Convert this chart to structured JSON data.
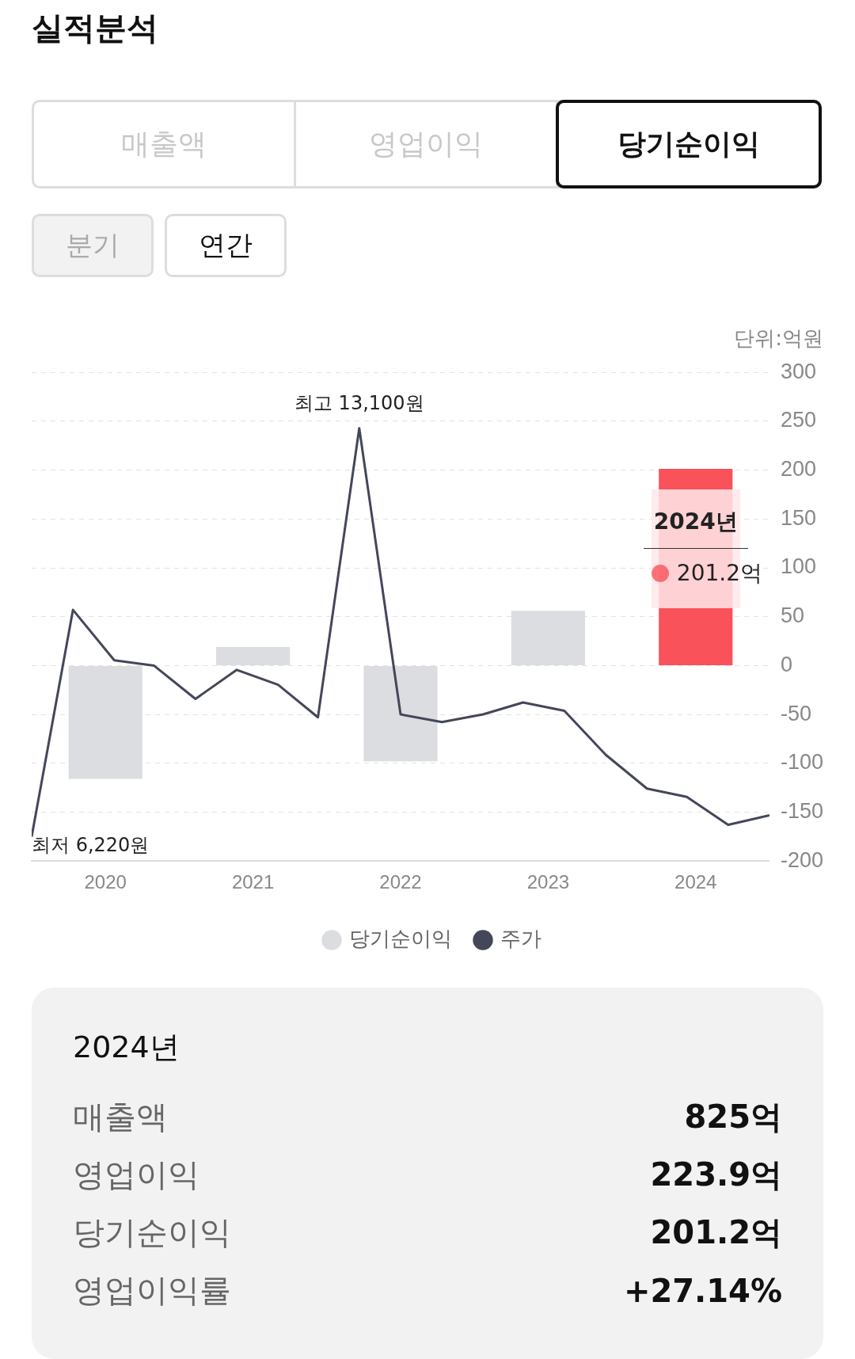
{
  "chart_data": [
    {
      "type": "bar",
      "title": "실적분석",
      "ylabel": "단위:억원",
      "annotations": [
        "매출액",
        "영업이익",
        "당기순이익",
        "분기",
        "연간",
        {
          "text": "2024년",
          "x": 2024,
          "y": 201.2
        }
      ],
      "x": [
        2020,
        2021,
        2022,
        2023,
        2024
      ],
      "xlim": [
        2019.5,
        2024.5
      ],
      "xticks": [
        2020,
        2021,
        2022,
        2023,
        2024
      ],
      "ylim": [
        -200,
        300
      ],
      "yticks": [
        -200,
        -150,
        -100,
        -50,
        0,
        50,
        100,
        150,
        200,
        250,
        300
      ],
      "grid": "y",
      "legend": "bottom",
      "marker": "none",
      "line_style": "solid",
      "series": [
        {
          "name": "당기순이익",
          "color": "#dcdde1",
          "colors": [
            "#dcdde1",
            "#dcdde1",
            "#dcdde1",
            "#dcdde1",
            "#f9525a"
          ],
          "values": [
            -116,
            19,
            -98,
            56,
            201.2
          ],
          "value_labels": [
            null,
            null,
            null,
            null,
            "201.2억"
          ]
        },
        {
          "name": "주가",
          "type": "line",
          "axis": "y2",
          "color": "#44475a",
          "x": [
            2019.5,
            2019.78,
            2020.06,
            2020.33,
            2020.61,
            2020.89,
            2021.17,
            2021.44,
            2021.72,
            2022.0,
            2022.28,
            2022.56,
            2022.83,
            2023.11,
            2023.39,
            2023.67,
            2023.94,
            2024.22,
            2024.5
          ],
          "values": [
            6220,
            10040,
            9190,
            9100,
            8540,
            9030,
            8780,
            8230,
            13100,
            8280,
            8150,
            8280,
            8480,
            8340,
            7600,
            7030,
            6890,
            6420,
            6580
          ],
          "value_labels": [
            "최저 6,220원",
            null,
            null,
            null,
            null,
            null,
            null,
            null,
            "최고 13,100원",
            null,
            null,
            null,
            null,
            null,
            null,
            null,
            null,
            null,
            null
          ]
        }
      ],
      "y2lim": [
        5810,
        14040
      ]
    },
    {
      "type": "other",
      "title": "2024년",
      "categories": [
        "매출액",
        "영업이익",
        "당기순이익",
        "영업이익률"
      ],
      "value_labels": [
        "825억",
        "223.9억",
        "201.2억",
        "+27.14%"
      ]
    }
  ]
}
